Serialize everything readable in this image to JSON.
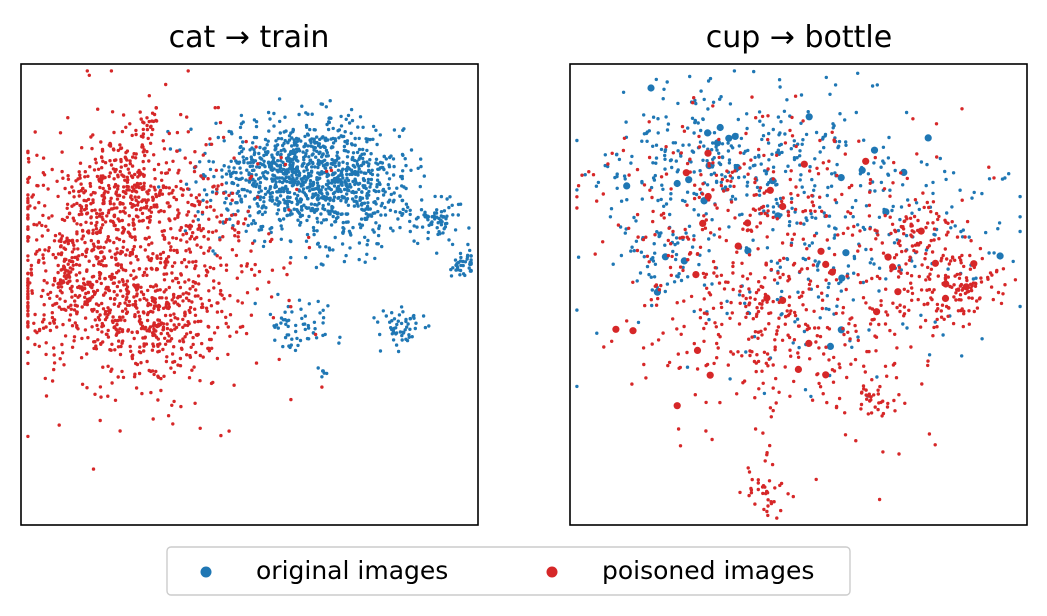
{
  "chart_data": [
    {
      "type": "scatter",
      "title": "cat → train",
      "xlabel": "",
      "ylabel": "",
      "axes_ticks": "none",
      "grid": false,
      "series": [
        {
          "name": "original images",
          "color": "#1f77b4",
          "clusters": [
            {
              "center": [
                0.62,
                0.76
              ],
              "spread": [
                0.1,
                0.06
              ],
              "count": 1000
            },
            {
              "center": [
                0.75,
                0.7
              ],
              "spread": [
                0.08,
                0.06
              ],
              "count": 190
            },
            {
              "center": [
                0.9,
                0.67
              ],
              "spread": [
                0.035,
                0.025
              ],
              "count": 60
            },
            {
              "center": [
                0.97,
                0.57
              ],
              "spread": [
                0.02,
                0.015
              ],
              "count": 40
            },
            {
              "center": [
                0.62,
                0.43
              ],
              "spread": [
                0.04,
                0.03
              ],
              "count": 60
            },
            {
              "center": [
                0.83,
                0.43
              ],
              "spread": [
                0.03,
                0.02
              ],
              "count": 55
            },
            {
              "center": [
                0.66,
                0.33
              ],
              "spread": [
                0.01,
                0.01
              ],
              "count": 6
            }
          ]
        },
        {
          "name": "poisoned images",
          "color": "#d62728",
          "clusters": [
            {
              "center": [
                0.24,
                0.57
              ],
              "spread": [
                0.14,
                0.14
              ],
              "count": 1000
            },
            {
              "center": [
                0.12,
                0.55
              ],
              "spread": [
                0.06,
                0.08
              ],
              "count": 170
            },
            {
              "center": [
                0.25,
                0.72
              ],
              "spread": [
                0.07,
                0.04
              ],
              "count": 170
            },
            {
              "center": [
                0.31,
                0.44
              ],
              "spread": [
                0.06,
                0.05
              ],
              "count": 170
            },
            {
              "center": [
                0.22,
                0.8
              ],
              "spread": [
                0.04,
                0.03
              ],
              "count": 40
            },
            {
              "center": [
                0.28,
                0.87
              ],
              "spread": [
                0.015,
                0.015
              ],
              "count": 18
            }
          ]
        }
      ]
    },
    {
      "type": "scatter",
      "title": "cup → bottle",
      "xlabel": "",
      "ylabel": "",
      "axes_ticks": "none",
      "grid": false,
      "series": [
        {
          "name": "original images",
          "color": "#1f77b4",
          "clusters": [
            {
              "center": [
                0.33,
                0.8
              ],
              "spread": [
                0.15,
                0.08
              ],
              "count": 280
            },
            {
              "center": [
                0.5,
                0.6
              ],
              "spread": [
                0.18,
                0.15
              ],
              "count": 200
            },
            {
              "center": [
                0.7,
                0.65
              ],
              "spread": [
                0.14,
                0.1
              ],
              "count": 120
            },
            {
              "center": [
                0.2,
                0.58
              ],
              "spread": [
                0.05,
                0.05
              ],
              "count": 50
            }
          ]
        },
        {
          "name": "poisoned images",
          "color": "#d62728",
          "clusters": [
            {
              "center": [
                0.48,
                0.45
              ],
              "spread": [
                0.15,
                0.13
              ],
              "count": 420
            },
            {
              "center": [
                0.76,
                0.63
              ],
              "spread": [
                0.06,
                0.04
              ],
              "count": 90
            },
            {
              "center": [
                0.84,
                0.51
              ],
              "spread": [
                0.06,
                0.04
              ],
              "count": 130
            },
            {
              "center": [
                0.66,
                0.27
              ],
              "spread": [
                0.025,
                0.02
              ],
              "count": 30
            },
            {
              "center": [
                0.43,
                0.07
              ],
              "spread": [
                0.03,
                0.03
              ],
              "count": 35
            },
            {
              "center": [
                0.45,
                0.75
              ],
              "spread": [
                0.2,
                0.08
              ],
              "count": 160
            },
            {
              "center": [
                0.3,
                0.55
              ],
              "spread": [
                0.12,
                0.1
              ],
              "count": 80
            }
          ]
        }
      ]
    }
  ],
  "legend": {
    "placement": "bottom-center",
    "items": [
      {
        "label": "original images",
        "color": "#1f77b4"
      },
      {
        "label": "poisoned images",
        "color": "#d62728"
      }
    ]
  }
}
